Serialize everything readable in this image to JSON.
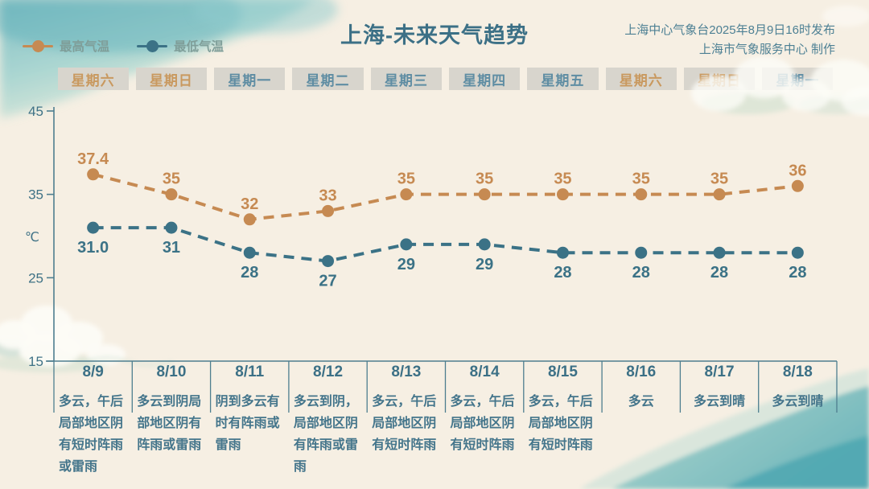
{
  "palette": {
    "background": "#f6efe3",
    "max_temp_color": "#c68a52",
    "min_temp_color": "#3b7286",
    "title_color": "#3c7086",
    "publisher_color": "#4d8094",
    "legend_label_color": "#7f9e99",
    "day_box_bg": "#d8d5cd",
    "weekend_text_color": "#c9995f",
    "weekday_text_color": "#5f8da3",
    "axis_color": "#4e7e8f",
    "tick_label_color": "#3f7286",
    "table_line_color": "#4e7e8f",
    "date_text_color": "#3c7086",
    "desc_text_color": "#44758b"
  },
  "header": {
    "title": "上海-未来天气趋势",
    "publisher_line1": "上海中心气象台2025年8月9日16时发布",
    "publisher_line2": "上海市气象服务中心 制作"
  },
  "legend": {
    "items": [
      {
        "label": "最高气温",
        "color": "#c68a52"
      },
      {
        "label": "最低气温",
        "color": "#3b7286"
      }
    ]
  },
  "week_row": {
    "days": [
      {
        "label": "星期六",
        "type": "weekend"
      },
      {
        "label": "星期日",
        "type": "weekend"
      },
      {
        "label": "星期一",
        "type": "weekday"
      },
      {
        "label": "星期二",
        "type": "weekday"
      },
      {
        "label": "星期三",
        "type": "weekday"
      },
      {
        "label": "星期四",
        "type": "weekday"
      },
      {
        "label": "星期五",
        "type": "weekday"
      },
      {
        "label": "星期六",
        "type": "weekend"
      },
      {
        "label": "星期日",
        "type": "weekend"
      },
      {
        "label": "星期一",
        "type": "weekday"
      }
    ]
  },
  "chart_data": {
    "type": "line",
    "title": "上海-未来天气趋势",
    "ylabel": "℃",
    "ylim": [
      15,
      45
    ],
    "yticks": [
      45,
      35,
      25,
      15
    ],
    "grid": false,
    "line_style": "dashed",
    "legend_position": "top-left",
    "categories": [
      "8/9",
      "8/10",
      "8/11",
      "8/12",
      "8/13",
      "8/14",
      "8/15",
      "8/16",
      "8/17",
      "8/18"
    ],
    "series": [
      {
        "name": "最高气温",
        "color": "#c68a52",
        "values": [
          37.4,
          35,
          32,
          33,
          35,
          35,
          35,
          35,
          35,
          36
        ],
        "labels": [
          "37.4",
          "35",
          "32",
          "33",
          "35",
          "35",
          "35",
          "35",
          "35",
          "36"
        ]
      },
      {
        "name": "最低气温",
        "color": "#3b7286",
        "values": [
          31.0,
          31,
          28,
          27,
          29,
          29,
          28,
          28,
          28,
          28
        ],
        "labels": [
          "31.0",
          "31",
          "28",
          "27",
          "29",
          "29",
          "28",
          "28",
          "28",
          "28"
        ]
      }
    ]
  },
  "forecast_table": {
    "columns": [
      {
        "date": "8/9",
        "desc": "多云，午后局部地区阴有短时阵雨或雷雨"
      },
      {
        "date": "8/10",
        "desc": "多云到阴局部地区阴有阵雨或雷雨"
      },
      {
        "date": "8/11",
        "desc": "阴到多云有时有阵雨或雷雨"
      },
      {
        "date": "8/12",
        "desc": "多云到阴，局部地区阴有阵雨或雷雨"
      },
      {
        "date": "8/13",
        "desc": "多云，午后局部地区阴有短时阵雨"
      },
      {
        "date": "8/14",
        "desc": "多云，午后局部地区阴有短时阵雨"
      },
      {
        "date": "8/15",
        "desc": "多云，午后局部地区阴有短时阵雨"
      },
      {
        "date": "8/16",
        "desc": "多云"
      },
      {
        "date": "8/17",
        "desc": "多云到晴"
      },
      {
        "date": "8/18",
        "desc": "多云到晴"
      }
    ]
  }
}
